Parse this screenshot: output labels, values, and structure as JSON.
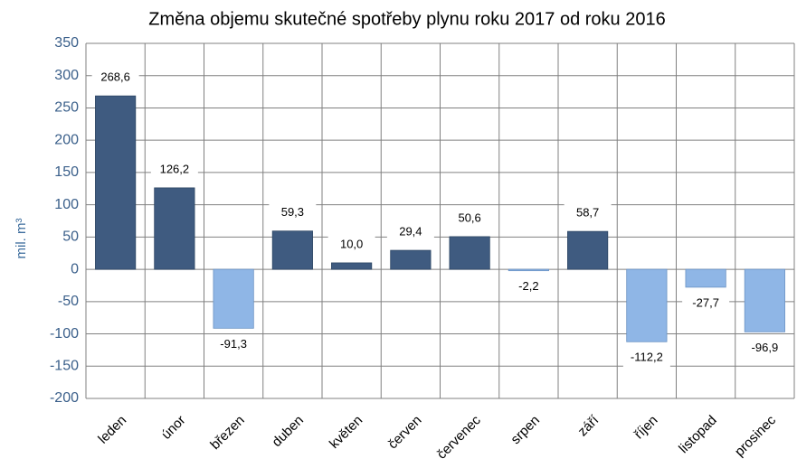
{
  "chart_data": {
    "type": "bar",
    "title": "Změna objemu skutečné spotřeby plynu roku 2017 od roku 2016",
    "y_label": "mil. m³",
    "categories": [
      "leden",
      "únor",
      "březen",
      "duben",
      "květen",
      "červen",
      "červenec",
      "srpen",
      "září",
      "říjen",
      "listopad",
      "prosinec"
    ],
    "values": [
      268.6,
      126.2,
      -91.3,
      59.3,
      10.0,
      29.4,
      50.6,
      -2.2,
      58.7,
      -112.2,
      -27.7,
      -96.9
    ],
    "value_labels": [
      "268,6",
      "126,2",
      "-91,3",
      "59,3",
      "10,0",
      "29,4",
      "50,6",
      "-2,2",
      "58,7",
      "-112,2",
      "-27,7",
      "-96,9"
    ],
    "positive_color": "#3f5b80",
    "negative_color": "#8fb6e6",
    "ylim": [
      -200,
      350
    ],
    "yticks": [
      -200,
      -150,
      -100,
      -50,
      0,
      50,
      100,
      150,
      200,
      250,
      300,
      350
    ],
    "grid": true
  }
}
